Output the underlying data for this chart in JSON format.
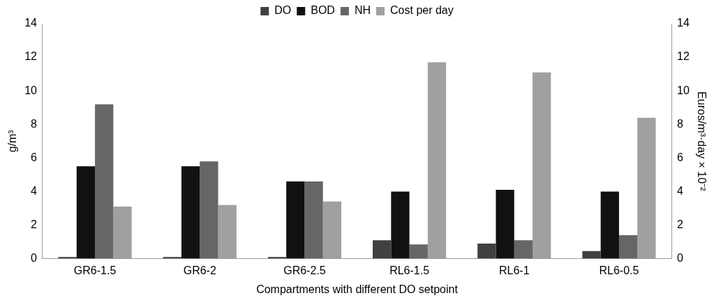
{
  "chart_data": {
    "type": "bar",
    "xlabel": "Compartments with different DO setpoint",
    "ylabel": "g/m³",
    "y2label": "Euros/m³·day × 10⁻²",
    "categories": [
      "GR6-1.5",
      "GR6-2",
      "GR6-2.5",
      "RL6-1.5",
      "RL6-1",
      "RL6-0.5"
    ],
    "series": [
      {
        "name": "DO",
        "color": "#404040",
        "values": [
          0.1,
          0.1,
          0.1,
          1.1,
          0.9,
          0.45
        ]
      },
      {
        "name": "BOD",
        "color": "#111111",
        "values": [
          5.5,
          5.5,
          4.6,
          4.0,
          4.1,
          4.0
        ]
      },
      {
        "name": "NH",
        "color": "#666666",
        "values": [
          9.2,
          5.8,
          4.6,
          0.85,
          1.1,
          1.4
        ]
      },
      {
        "name": "Cost per day",
        "color": "#a0a0a0",
        "axis": "y2",
        "values": [
          3.1,
          3.2,
          3.4,
          11.7,
          11.1,
          8.4
        ]
      }
    ],
    "ylim": [
      0,
      14
    ],
    "yticks": [
      0,
      2,
      4,
      6,
      8,
      10,
      12,
      14
    ],
    "y2lim": [
      0,
      14
    ],
    "y2ticks": [
      0,
      2,
      4,
      6,
      8,
      10,
      12,
      14
    ],
    "grid": false,
    "legend": "top"
  }
}
